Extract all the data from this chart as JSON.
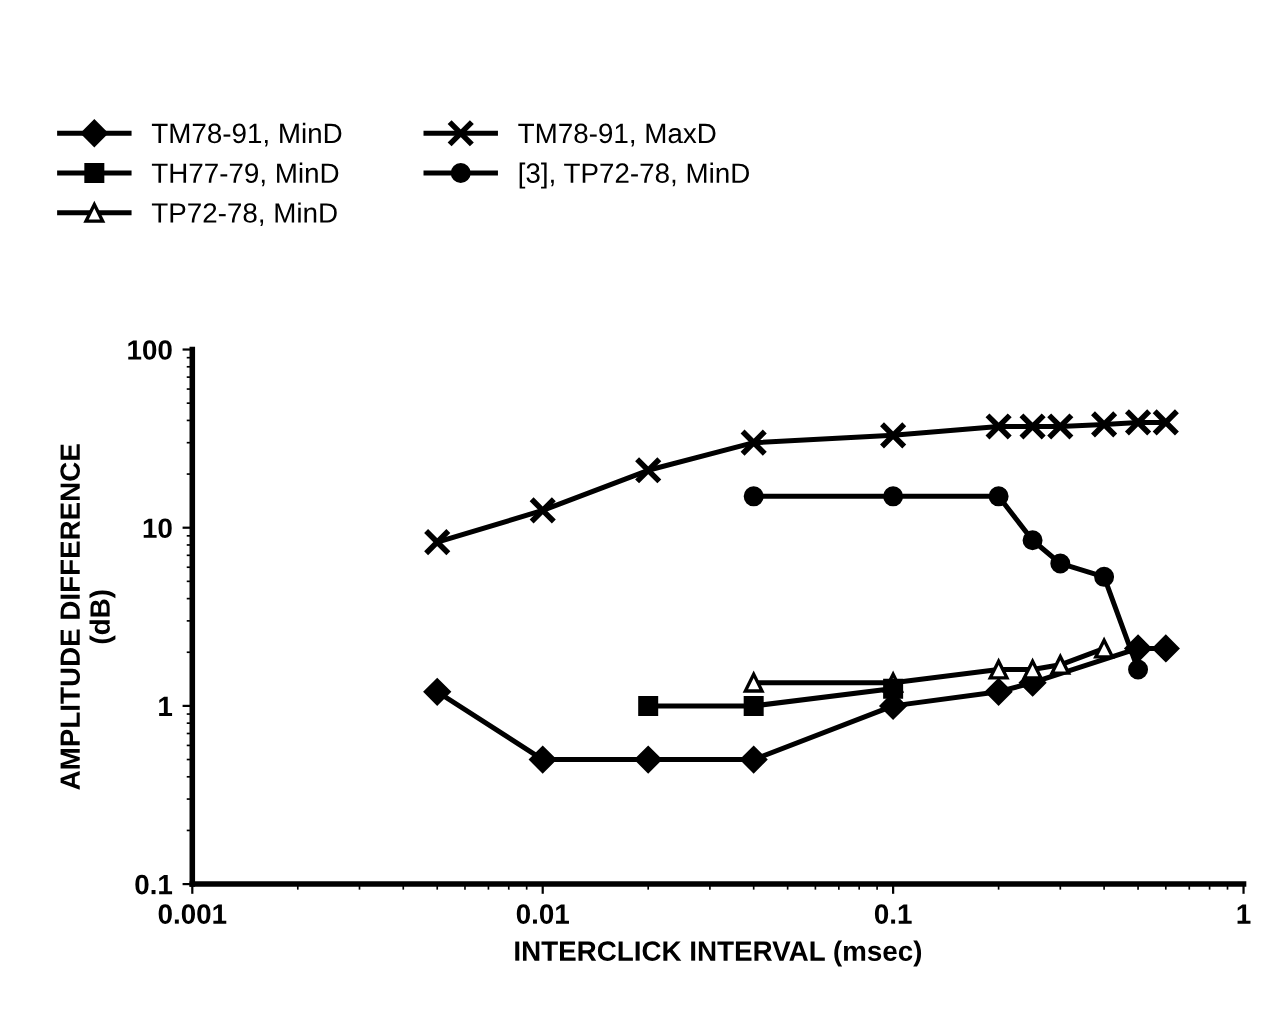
{
  "chart_data": {
    "type": "line",
    "xlabel": "INTERCLICK INTERVAL (msec)",
    "ylabel": "AMPLITUDE DIFFERENCE\n(dB)",
    "log": "xy",
    "xlim": [
      0.001,
      1
    ],
    "xticks": [
      0.001,
      0.01,
      0.1,
      1
    ],
    "ylim": [
      0.1,
      100
    ],
    "yticks": [
      0.1,
      1,
      10,
      100
    ],
    "grid": false,
    "legend": "top",
    "series": [
      {
        "name": "TM78-91, MinD",
        "color": "#000000",
        "marker": "diamond",
        "x": [
          0.005,
          0.01,
          0.02,
          0.04,
          0.1,
          0.2,
          0.25,
          0.5,
          0.6
        ],
        "values": [
          1.2,
          0.5,
          0.5,
          0.5,
          1.0,
          1.2,
          1.35,
          2.1,
          2.1
        ]
      },
      {
        "name": "TH77-79, MinD",
        "color": "#000000",
        "marker": "square",
        "x": [
          0.02,
          0.04,
          0.1
        ],
        "values": [
          1.0,
          1.0,
          1.25
        ]
      },
      {
        "name": "TP72-78, MinD",
        "color": "#000000",
        "marker": "triangle",
        "x": [
          0.04,
          0.1,
          0.2,
          0.25,
          0.3,
          0.4
        ],
        "values": [
          1.35,
          1.35,
          1.6,
          1.6,
          1.7,
          2.1
        ]
      },
      {
        "name": "TM78-91, MaxD",
        "color": "#000000",
        "marker": "cross",
        "x": [
          0.005,
          0.01,
          0.02,
          0.04,
          0.1,
          0.2,
          0.25,
          0.3,
          0.4,
          0.5,
          0.6
        ],
        "values": [
          8.3,
          12.5,
          21,
          30,
          33,
          37,
          37,
          37,
          38,
          39,
          39
        ]
      },
      {
        "name": "[3], TP72-78, MinD",
        "color": "#000000",
        "marker": "circle",
        "x": [
          0.04,
          0.1,
          0.2,
          0.25,
          0.3,
          0.4,
          0.5
        ],
        "values": [
          15,
          15,
          15,
          8.5,
          6.3,
          5.3,
          1.6
        ]
      }
    ]
  }
}
